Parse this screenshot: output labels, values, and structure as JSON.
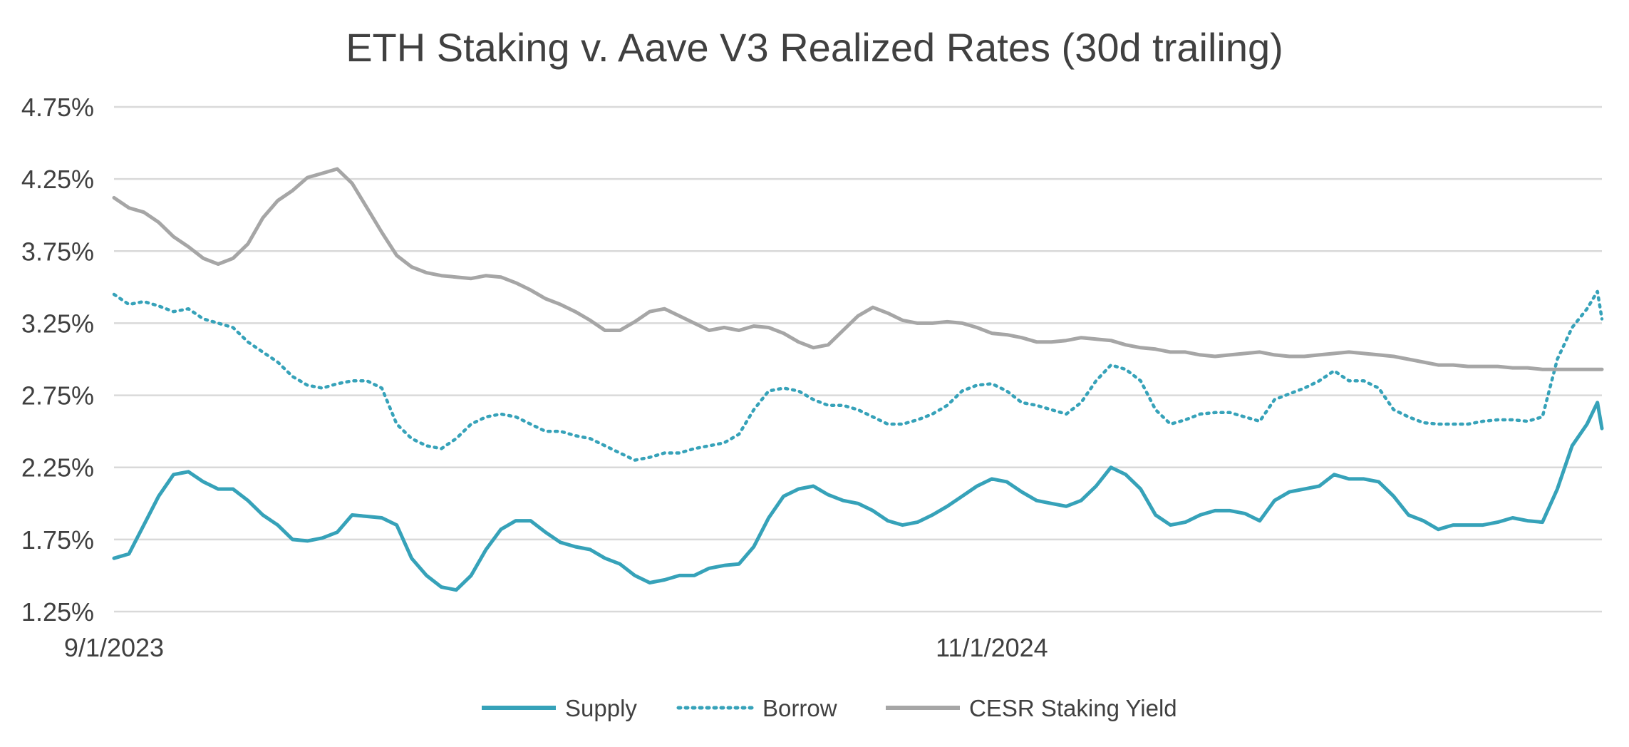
{
  "chart_data": {
    "type": "line",
    "title": "ETH Staking v. Aave V3 Realized Rates (30d trailing)",
    "xlabel": "",
    "ylabel": "",
    "ylim": [
      1.25,
      4.75
    ],
    "yticks": [
      1.25,
      1.75,
      2.25,
      2.75,
      3.25,
      3.75,
      4.25,
      4.75
    ],
    "ytick_labels": [
      "1.25%",
      "1.75%",
      "2.25%",
      "2.75%",
      "3.25%",
      "3.75%",
      "4.25%",
      "4.75%"
    ],
    "x_domain": [
      0,
      100
    ],
    "xtick_labels": [
      {
        "x": 0,
        "label": "9/1/2023"
      },
      {
        "x": 59.0,
        "label": "11/1/2024"
      }
    ],
    "grid": true,
    "legend_position": "bottom",
    "series": [
      {
        "name": "Supply",
        "color": "#36a2b9",
        "style": "solid",
        "x": [
          0,
          1,
          2,
          3,
          4,
          5,
          6,
          7,
          8,
          9,
          10,
          11,
          12,
          13,
          14,
          15,
          16,
          17,
          18,
          19,
          20,
          21,
          22,
          23,
          24,
          25,
          26,
          27,
          28,
          29,
          30,
          31,
          32,
          33,
          34,
          35,
          36,
          37,
          38,
          39,
          40,
          41,
          42,
          43,
          44,
          45,
          46,
          47,
          48,
          49,
          50,
          51,
          52,
          53,
          54,
          55,
          56,
          57,
          58,
          59,
          60,
          61,
          62,
          63,
          64,
          65,
          66,
          67,
          68,
          69,
          70,
          71,
          72,
          73,
          74,
          75,
          76,
          77,
          78,
          79,
          80,
          81,
          82,
          83,
          84,
          85,
          86,
          87,
          88,
          89,
          90,
          91,
          92,
          93,
          94,
          95,
          96,
          97,
          98,
          99,
          99.7,
          100
        ],
        "values": [
          1.62,
          1.65,
          1.85,
          2.05,
          2.2,
          2.22,
          2.15,
          2.1,
          2.1,
          2.02,
          1.92,
          1.85,
          1.75,
          1.74,
          1.76,
          1.8,
          1.92,
          1.91,
          1.9,
          1.85,
          1.62,
          1.5,
          1.42,
          1.4,
          1.5,
          1.68,
          1.82,
          1.88,
          1.88,
          1.8,
          1.73,
          1.7,
          1.68,
          1.62,
          1.58,
          1.5,
          1.45,
          1.47,
          1.5,
          1.5,
          1.55,
          1.57,
          1.58,
          1.7,
          1.9,
          2.05,
          2.1,
          2.12,
          2.06,
          2.02,
          2.0,
          1.95,
          1.88,
          1.85,
          1.87,
          1.92,
          1.98,
          2.05,
          2.12,
          2.17,
          2.15,
          2.08,
          2.02,
          2.0,
          1.98,
          2.02,
          2.12,
          2.25,
          2.2,
          2.1,
          1.92,
          1.85,
          1.87,
          1.92,
          1.95,
          1.95,
          1.93,
          1.88,
          2.02,
          2.08,
          2.1,
          2.12,
          2.2,
          2.17,
          2.17,
          2.15,
          2.05,
          1.92,
          1.88,
          1.82,
          1.85,
          1.85,
          1.85,
          1.87,
          1.9,
          1.88,
          1.87,
          2.1,
          2.4,
          2.55,
          2.7,
          2.52
        ]
      },
      {
        "name": "Borrow",
        "color": "#36a2b9",
        "style": "dotted",
        "x": [
          0,
          1,
          2,
          3,
          4,
          5,
          6,
          7,
          8,
          9,
          10,
          11,
          12,
          13,
          14,
          15,
          16,
          17,
          18,
          19,
          20,
          21,
          22,
          23,
          24,
          25,
          26,
          27,
          28,
          29,
          30,
          31,
          32,
          33,
          34,
          35,
          36,
          37,
          38,
          39,
          40,
          41,
          42,
          43,
          44,
          45,
          46,
          47,
          48,
          49,
          50,
          51,
          52,
          53,
          54,
          55,
          56,
          57,
          58,
          59,
          60,
          61,
          62,
          63,
          64,
          65,
          66,
          67,
          68,
          69,
          70,
          71,
          72,
          73,
          74,
          75,
          76,
          77,
          78,
          79,
          80,
          81,
          82,
          83,
          84,
          85,
          86,
          87,
          88,
          89,
          90,
          91,
          92,
          93,
          94,
          95,
          96,
          97,
          98,
          99,
          99.7,
          100
        ],
        "values": [
          3.45,
          3.38,
          3.4,
          3.37,
          3.33,
          3.35,
          3.28,
          3.25,
          3.22,
          3.12,
          3.05,
          2.98,
          2.88,
          2.82,
          2.8,
          2.83,
          2.85,
          2.85,
          2.8,
          2.55,
          2.45,
          2.4,
          2.38,
          2.45,
          2.55,
          2.6,
          2.62,
          2.6,
          2.55,
          2.5,
          2.5,
          2.47,
          2.45,
          2.4,
          2.35,
          2.3,
          2.32,
          2.35,
          2.35,
          2.38,
          2.4,
          2.42,
          2.48,
          2.65,
          2.78,
          2.8,
          2.78,
          2.72,
          2.68,
          2.68,
          2.65,
          2.6,
          2.55,
          2.55,
          2.58,
          2.62,
          2.68,
          2.78,
          2.82,
          2.83,
          2.78,
          2.7,
          2.68,
          2.65,
          2.62,
          2.7,
          2.85,
          2.96,
          2.93,
          2.85,
          2.65,
          2.55,
          2.58,
          2.62,
          2.63,
          2.63,
          2.6,
          2.57,
          2.72,
          2.76,
          2.8,
          2.85,
          2.92,
          2.85,
          2.85,
          2.8,
          2.65,
          2.6,
          2.56,
          2.55,
          2.55,
          2.55,
          2.57,
          2.58,
          2.58,
          2.57,
          2.6,
          3.0,
          3.22,
          3.35,
          3.47,
          3.28
        ]
      },
      {
        "name": "CESR Staking Yield",
        "color": "#a6a6a6",
        "style": "solid",
        "x": [
          0,
          1,
          2,
          3,
          4,
          5,
          6,
          7,
          8,
          9,
          10,
          11,
          12,
          13,
          14,
          15,
          16,
          17,
          18,
          19,
          20,
          21,
          22,
          23,
          24,
          25,
          26,
          27,
          28,
          29,
          30,
          31,
          32,
          33,
          34,
          35,
          36,
          37,
          38,
          39,
          40,
          41,
          42,
          43,
          44,
          45,
          46,
          47,
          48,
          49,
          50,
          51,
          52,
          53,
          54,
          55,
          56,
          57,
          58,
          59,
          60,
          61,
          62,
          63,
          64,
          65,
          66,
          67,
          68,
          69,
          70,
          71,
          72,
          73,
          74,
          75,
          76,
          77,
          78,
          79,
          80,
          81,
          82,
          83,
          84,
          85,
          86,
          87,
          88,
          89,
          90,
          91,
          92,
          93,
          94,
          95,
          96,
          97,
          98,
          99,
          100
        ],
        "values": [
          4.12,
          4.05,
          4.02,
          3.95,
          3.85,
          3.78,
          3.7,
          3.66,
          3.7,
          3.8,
          3.98,
          4.1,
          4.17,
          4.26,
          4.29,
          4.32,
          4.22,
          4.05,
          3.88,
          3.72,
          3.64,
          3.6,
          3.58,
          3.57,
          3.56,
          3.58,
          3.57,
          3.53,
          3.48,
          3.42,
          3.38,
          3.33,
          3.27,
          3.2,
          3.2,
          3.26,
          3.33,
          3.35,
          3.3,
          3.25,
          3.2,
          3.22,
          3.2,
          3.23,
          3.22,
          3.18,
          3.12,
          3.08,
          3.1,
          3.2,
          3.3,
          3.36,
          3.32,
          3.27,
          3.25,
          3.25,
          3.26,
          3.25,
          3.22,
          3.18,
          3.17,
          3.15,
          3.12,
          3.12,
          3.13,
          3.15,
          3.14,
          3.13,
          3.1,
          3.08,
          3.07,
          3.05,
          3.05,
          3.03,
          3.02,
          3.03,
          3.04,
          3.05,
          3.03,
          3.02,
          3.02,
          3.03,
          3.04,
          3.05,
          3.04,
          3.03,
          3.02,
          3.0,
          2.98,
          2.96,
          2.96,
          2.95,
          2.95,
          2.95,
          2.94,
          2.94,
          2.93,
          2.93,
          2.93,
          2.93,
          2.93
        ]
      }
    ]
  }
}
